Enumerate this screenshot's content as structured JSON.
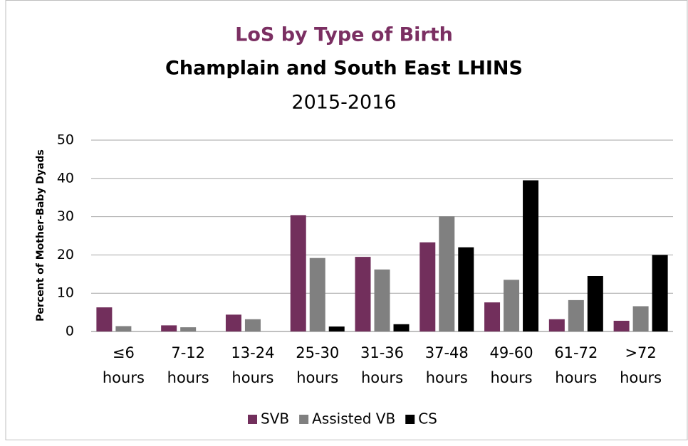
{
  "chart_data": {
    "type": "bar",
    "title": "LoS by Type of Birth",
    "subtitle": "Champlain and South East LHINS",
    "period": "2015-2016",
    "y_label": "Percent of Mother-Baby Dyads",
    "categories": [
      "≤6 hours",
      "7-12 hours",
      "13-24 hours",
      "25-30 hours",
      "31-36 hours",
      "37-48 hours",
      "49-60 hours",
      "61-72 hours",
      ">72 hours"
    ],
    "series": [
      {
        "name": "SVB",
        "color": "#722f5c",
        "values": [
          6.3,
          1.6,
          4.4,
          30.4,
          19.5,
          23.3,
          7.6,
          3.2,
          2.8
        ]
      },
      {
        "name": "Assisted VB",
        "color": "#808080",
        "values": [
          1.4,
          1.1,
          3.2,
          19.2,
          16.2,
          30.1,
          13.5,
          8.2,
          6.6
        ]
      },
      {
        "name": "CS",
        "color": "#000000",
        "values": [
          0,
          0,
          0,
          1.3,
          1.9,
          22.0,
          39.5,
          14.5,
          20.0
        ]
      }
    ],
    "ylim": [
      0,
      50
    ],
    "yticks": [
      0,
      10,
      20,
      30,
      40,
      50
    ],
    "grid": true,
    "legend": "bottom"
  }
}
